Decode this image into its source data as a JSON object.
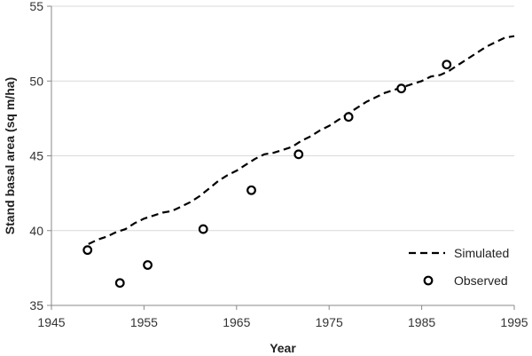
{
  "chart_data": {
    "type": "line",
    "title": "",
    "xlabel": "Year",
    "ylabel": "Stand basal area (sq m/ha)",
    "xlim": [
      1945,
      1995
    ],
    "ylim": [
      35,
      55
    ],
    "xticks": [
      1945,
      1955,
      1965,
      1975,
      1985,
      1995
    ],
    "yticks": [
      35,
      40,
      45,
      50,
      55
    ],
    "xtick_labels": [
      "1945",
      "1955",
      "1965",
      "1975",
      "1985",
      "1995"
    ],
    "ytick_labels": [
      "35",
      "40",
      "45",
      "50",
      "55"
    ],
    "grid": "horizontal",
    "legend_position": "bottom-right",
    "colors": {
      "line": "#000000",
      "grid": "#d9d9d9",
      "axis": "#888888"
    },
    "series": [
      {
        "name": "Simulated",
        "style": "dashed-line",
        "x": [
          1949,
          1950,
          1951,
          1952,
          1953,
          1954,
          1955,
          1956,
          1957,
          1958,
          1959,
          1960,
          1961,
          1962,
          1963,
          1964,
          1965,
          1966,
          1967,
          1968,
          1969,
          1970,
          1971,
          1972,
          1973,
          1974,
          1975,
          1976,
          1977,
          1978,
          1979,
          1980,
          1981,
          1982,
          1983,
          1984,
          1985,
          1986,
          1987,
          1988,
          1989,
          1990,
          1991,
          1992,
          1993,
          1994,
          1995
        ],
        "y": [
          39.1,
          39.4,
          39.6,
          39.9,
          40.1,
          40.5,
          40.8,
          41.0,
          41.2,
          41.3,
          41.6,
          41.9,
          42.3,
          42.8,
          43.3,
          43.7,
          44.0,
          44.4,
          44.8,
          45.1,
          45.2,
          45.4,
          45.6,
          46.0,
          46.3,
          46.7,
          47.0,
          47.4,
          47.8,
          48.2,
          48.6,
          48.9,
          49.2,
          49.4,
          49.6,
          49.8,
          50.0,
          50.3,
          50.4,
          50.7,
          51.1,
          51.5,
          51.9,
          52.3,
          52.6,
          52.9,
          53.0
        ]
      },
      {
        "name": "Observed",
        "style": "open-circle",
        "x": [
          1948.9,
          1952.4,
          1955.4,
          1961.4,
          1966.6,
          1971.7,
          1977.1,
          1982.8,
          1987.7
        ],
        "y": [
          38.7,
          36.5,
          37.7,
          40.1,
          42.7,
          45.1,
          47.6,
          49.5,
          51.1
        ]
      }
    ]
  }
}
